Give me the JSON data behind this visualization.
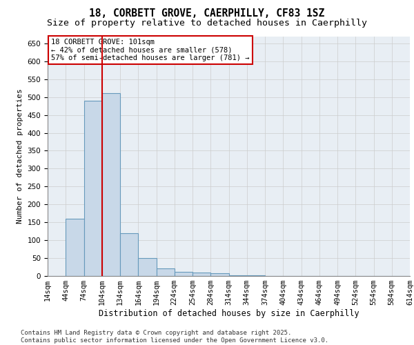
{
  "title1": "18, CORBETT GROVE, CAERPHILLY, CF83 1SZ",
  "title2": "Size of property relative to detached houses in Caerphilly",
  "xlabel": "Distribution of detached houses by size in Caerphilly",
  "ylabel": "Number of detached properties",
  "bar_values": [
    0,
    160,
    490,
    510,
    120,
    50,
    22,
    12,
    10,
    7,
    2,
    1,
    0,
    0,
    0,
    0,
    0,
    0,
    0,
    0
  ],
  "bar_labels": [
    "14sqm",
    "44sqm",
    "74sqm",
    "104sqm",
    "134sqm",
    "164sqm",
    "194sqm",
    "224sqm",
    "254sqm",
    "284sqm",
    "314sqm",
    "344sqm",
    "374sqm",
    "404sqm",
    "434sqm",
    "464sqm",
    "494sqm",
    "524sqm",
    "554sqm",
    "584sqm",
    "614sqm"
  ],
  "bar_color": "#c8d8e8",
  "bar_edge_color": "#6699bb",
  "bar_edge_width": 0.8,
  "grid_color": "#cccccc",
  "background_color": "#e8eef4",
  "vline_color": "#cc0000",
  "annotation_text": "18 CORBETT GROVE: 101sqm\n← 42% of detached houses are smaller (578)\n57% of semi-detached houses are larger (781) →",
  "annotation_box_color": "#ffffff",
  "annotation_border_color": "#cc0000",
  "ylim": [
    0,
    670
  ],
  "yticks": [
    0,
    50,
    100,
    150,
    200,
    250,
    300,
    350,
    400,
    450,
    500,
    550,
    600,
    650
  ],
  "footnote": "Contains HM Land Registry data © Crown copyright and database right 2025.\nContains public sector information licensed under the Open Government Licence v3.0.",
  "title1_fontsize": 10.5,
  "title2_fontsize": 9.5,
  "xlabel_fontsize": 8.5,
  "ylabel_fontsize": 8,
  "tick_fontsize": 7.5,
  "annotation_fontsize": 7.5,
  "footnote_fontsize": 6.5
}
